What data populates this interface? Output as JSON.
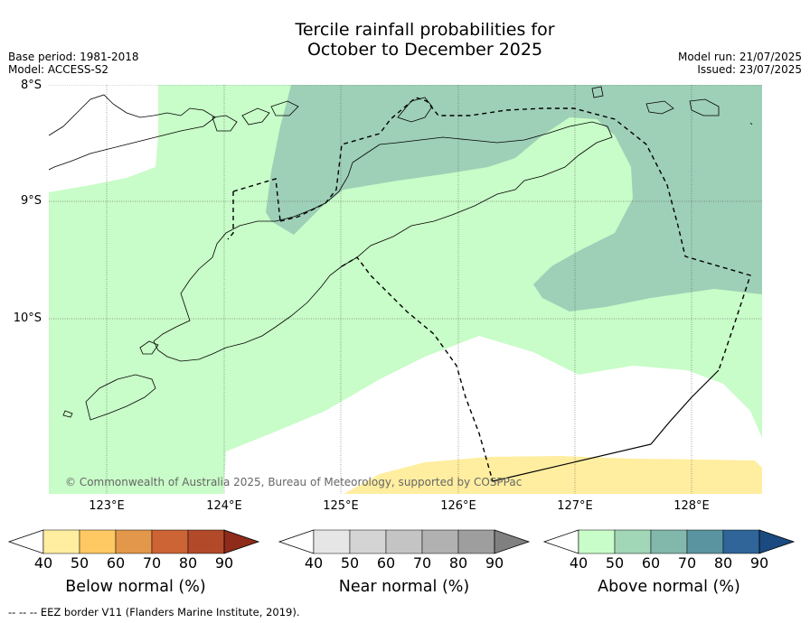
{
  "title_line1": "Tercile rainfall probabilities for",
  "title_line2": "October to December 2025",
  "base_period": "Base period: 1981-2018",
  "model": "Model: ACCESS-S2",
  "model_run": "Model run: 21/07/2025",
  "issued": "Issued: 23/07/2025",
  "copyright": "© Commonwealth of Australia 2025, Bureau of Meteorology, supported by COSPPac",
  "footer": "--  --  -- EEZ border V11 (Flanders Marine Institute, 2019).",
  "lat_labels": [
    "8°S",
    "9°S",
    "10°S"
  ],
  "lon_labels": [
    "123°E",
    "124°E",
    "125°E",
    "126°E",
    "127°E",
    "128°E"
  ],
  "colorbars": [
    {
      "label": "Below normal (%)",
      "ticks": [
        "40",
        "50",
        "60",
        "70",
        "80",
        "90"
      ],
      "colors": [
        "#ffffff",
        "#ffeea0",
        "#fec863",
        "#e3974a",
        "#cc6435",
        "#b24a2a",
        "#8e2b1a"
      ]
    },
    {
      "label": "Near normal (%)",
      "ticks": [
        "40",
        "50",
        "60",
        "70",
        "80",
        "90"
      ],
      "colors": [
        "#ffffff",
        "#e6e6e6",
        "#d4d4d4",
        "#c4c4c4",
        "#b1b1b1",
        "#9e9e9e",
        "#808080"
      ]
    },
    {
      "label": "Above normal (%)",
      "ticks": [
        "40",
        "50",
        "60",
        "70",
        "80",
        "90"
      ],
      "colors": [
        "#ffffff",
        "#c8fcc8",
        "#a1d6b7",
        "#81b8ab",
        "#5a94a1",
        "#2f6598",
        "#1a4a80"
      ]
    }
  ],
  "category_colors": {
    "above_40_50": "#c8fcc8",
    "above_50_60": "#9ed0b7",
    "below_40_50": "#ffeea0",
    "no_dominant": "#ffffff"
  }
}
